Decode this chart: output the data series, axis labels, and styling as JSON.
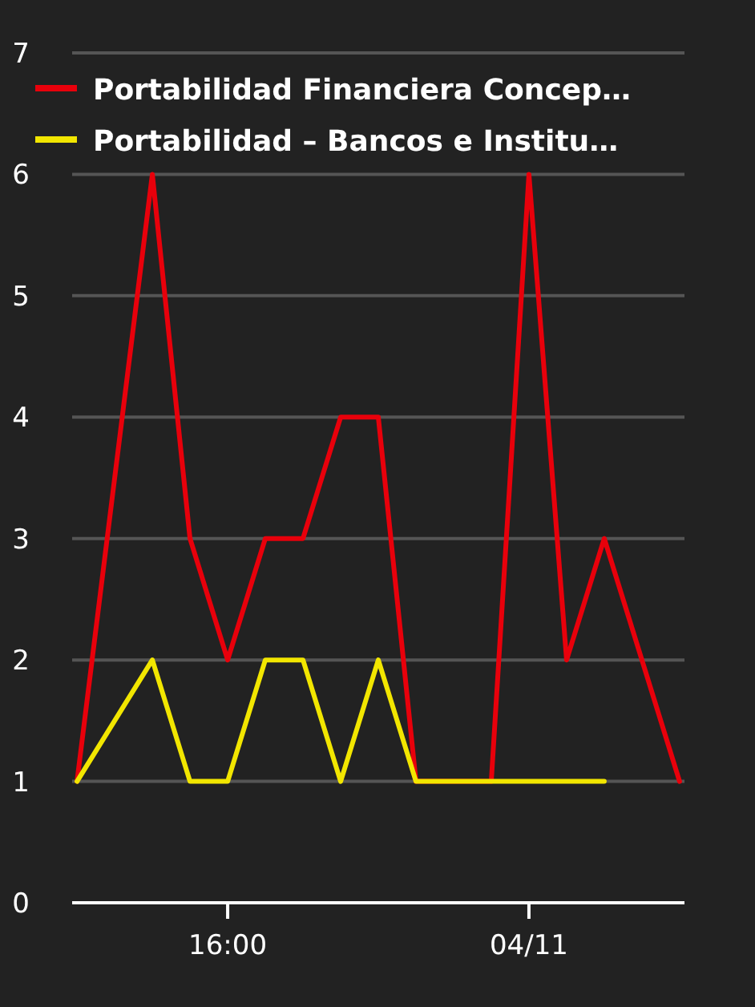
{
  "chart_data": {
    "type": "line",
    "categories": [
      null,
      null,
      null,
      null,
      "16:00",
      null,
      null,
      null,
      null,
      null,
      null,
      null,
      "04/11",
      null,
      null,
      null,
      null
    ],
    "series": [
      {
        "name": "Portabilidad Financiera Concep…",
        "color": "#e8000b",
        "values": [
          1,
          3.5,
          6,
          3,
          2,
          3,
          3,
          4,
          4,
          1,
          1,
          1,
          6,
          2,
          3,
          2,
          1
        ]
      },
      {
        "name": "Portabilidad – Bancos e Institu…",
        "color": "#f2e600",
        "values": [
          1,
          1.5,
          2,
          1,
          1,
          2,
          2,
          1,
          2,
          1,
          1,
          1,
          1,
          1,
          1,
          null,
          null
        ]
      }
    ],
    "ylim": [
      0,
      7
    ],
    "yticks": [
      0,
      1,
      2,
      3,
      4,
      5,
      6,
      7
    ],
    "grid": "y",
    "legend": "top left",
    "marker": "none",
    "line_style": "solid"
  }
}
